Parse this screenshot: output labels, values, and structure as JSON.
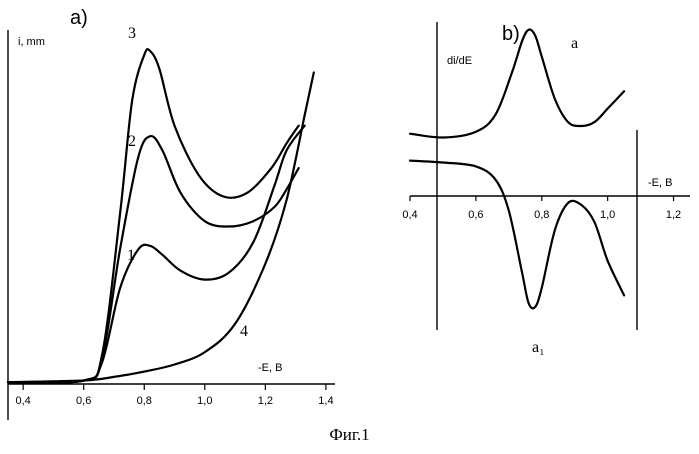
{
  "caption": "Фиг.1",
  "chart_data": [
    {
      "type": "line",
      "panel_label": "a)",
      "ylabel": "i, mm",
      "xlabel": "-E, B",
      "xlim": [
        0.35,
        1.43
      ],
      "ylim": [
        0,
        10
      ],
      "x_ticks": [
        "0,4",
        "0,6",
        "0,8",
        "1,0",
        "1,2",
        "1,4"
      ],
      "x_tick_values": [
        0.4,
        0.6,
        0.8,
        1.0,
        1.2,
        1.4
      ],
      "grid": false,
      "series": [
        {
          "name": "1",
          "x": [
            0.35,
            0.6,
            0.66,
            0.72,
            0.78,
            0.82,
            0.86,
            0.92,
            1.0,
            1.08,
            1.16,
            1.23,
            1.27,
            1.33
          ],
          "y": [
            0.05,
            0.1,
            0.6,
            2.7,
            3.8,
            3.9,
            3.65,
            3.2,
            2.95,
            3.15,
            4.0,
            5.6,
            6.6,
            7.3
          ]
        },
        {
          "name": "2",
          "x": [
            0.35,
            0.6,
            0.66,
            0.72,
            0.78,
            0.82,
            0.86,
            0.92,
            1.0,
            1.08,
            1.16,
            1.23,
            1.27,
            1.31
          ],
          "y": [
            0.05,
            0.1,
            0.7,
            3.8,
            6.4,
            7.0,
            6.6,
            5.4,
            4.6,
            4.45,
            4.6,
            5.0,
            5.5,
            6.1
          ]
        },
        {
          "name": "3",
          "x": [
            0.35,
            0.6,
            0.66,
            0.72,
            0.76,
            0.8,
            0.82,
            0.85,
            0.9,
            0.98,
            1.06,
            1.14,
            1.22,
            1.27,
            1.31
          ],
          "y": [
            0.05,
            0.1,
            0.8,
            4.8,
            8.0,
            9.3,
            9.4,
            8.9,
            7.3,
            5.9,
            5.3,
            5.4,
            6.1,
            6.8,
            7.3
          ]
        },
        {
          "name": "4",
          "x": [
            0.35,
            0.6,
            0.7,
            0.8,
            0.9,
            1.0,
            1.1,
            1.2,
            1.27,
            1.33,
            1.36
          ],
          "y": [
            0.05,
            0.1,
            0.2,
            0.35,
            0.55,
            0.9,
            1.7,
            3.4,
            5.2,
            7.6,
            8.8
          ]
        }
      ]
    },
    {
      "type": "line",
      "panel_label": "b)",
      "ylabel": "di/dE",
      "xlabel": "-E, B",
      "xlim": [
        0.4,
        1.25
      ],
      "ylim": [
        -4.8,
        3.2
      ],
      "x_ticks": [
        "0,4",
        "0,6",
        "0,8",
        "1,0",
        "1,2"
      ],
      "x_tick_values": [
        0.4,
        0.6,
        0.8,
        1.0,
        1.2
      ],
      "grid": false,
      "series": [
        {
          "name": "a",
          "x": [
            0.4,
            0.5,
            0.6,
            0.66,
            0.71,
            0.74,
            0.76,
            0.78,
            0.8,
            0.84,
            0.88,
            0.92,
            0.96,
            1.0,
            1.05
          ],
          "y": [
            0.3,
            0.2,
            0.35,
            0.8,
            1.9,
            2.7,
            3.0,
            2.85,
            2.3,
            1.2,
            0.6,
            0.5,
            0.6,
            0.95,
            1.4
          ]
        },
        {
          "name": "a₁",
          "x": [
            0.4,
            0.5,
            0.6,
            0.66,
            0.7,
            0.74,
            0.76,
            0.78,
            0.8,
            0.84,
            0.88,
            0.92,
            0.96,
            1.0,
            1.05
          ],
          "y": [
            -0.4,
            -0.45,
            -0.55,
            -0.9,
            -1.7,
            -3.3,
            -4.1,
            -4.2,
            -3.7,
            -2.2,
            -1.5,
            -1.55,
            -2.0,
            -3.0,
            -3.9
          ]
        }
      ]
    }
  ]
}
